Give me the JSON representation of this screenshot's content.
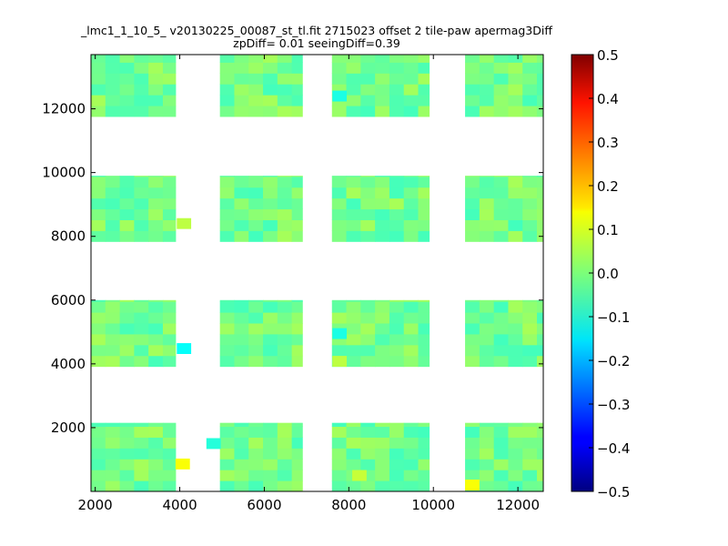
{
  "chart_data": {
    "type": "heatmap",
    "title": "_lmc1_1_10_5_ v20130225_00087_st_tl.fit 2715023 offset 2 tile-paw apermag3Diff",
    "subtitle": "zpDiff= 0.01 seeingDiff=0.39",
    "xlim": [
      1900,
      12600
    ],
    "ylim": [
      0,
      13700
    ],
    "x_ticks": [
      "2000",
      "4000",
      "6000",
      "8000",
      "10000",
      "12000"
    ],
    "x_tick_values": [
      2000,
      4000,
      6000,
      8000,
      10000,
      12000
    ],
    "y_ticks": [
      "2000",
      "4000",
      "6000",
      "8000",
      "10000",
      "12000"
    ],
    "y_tick_values": [
      2000,
      4000,
      6000,
      8000,
      10000,
      12000
    ],
    "colorbar": {
      "min": -0.5,
      "max": 0.5,
      "colormap": "jet",
      "tick_labels": [
        "0.5",
        "0.4",
        "0.3",
        "0.2",
        "0.1",
        "0.0",
        "−0.1",
        "−0.2",
        "−0.3",
        "−0.4",
        "−0.5"
      ],
      "tick_values": [
        0.5,
        0.4,
        0.3,
        0.2,
        0.1,
        0.0,
        -0.1,
        -0.2,
        -0.3,
        -0.4,
        -0.5
      ]
    },
    "cell_size": 340,
    "panel_rows": [
      {
        "y0": 0,
        "y1": 2150
      },
      {
        "y0": 3920,
        "y1": 6000
      },
      {
        "y0": 7840,
        "y1": 9900
      },
      {
        "y0": 11760,
        "y1": 13700
      }
    ],
    "panel_cols": [
      {
        "x0": 1900,
        "x1": 3900
      },
      {
        "x0": 4950,
        "x1": 6900
      },
      {
        "x0": 7600,
        "x1": 9900
      },
      {
        "x0": 10750,
        "x1": 12600
      }
    ],
    "outliers": [
      {
        "x": 4070,
        "y": 860,
        "value": 0.12
      },
      {
        "x": 10920,
        "y": 200,
        "value": 0.12
      },
      {
        "x": 8250,
        "y": 500,
        "value": 0.07
      },
      {
        "x": 4100,
        "y": 4480,
        "value": -0.12
      },
      {
        "x": 4100,
        "y": 8400,
        "value": 0.06
      },
      {
        "x": 7780,
        "y": 4080,
        "value": 0.06
      },
      {
        "x": 7780,
        "y": 12400,
        "value": -0.1
      },
      {
        "x": 7780,
        "y": 4950,
        "value": -0.1
      },
      {
        "x": 4800,
        "y": 1500,
        "value": -0.09
      }
    ]
  }
}
